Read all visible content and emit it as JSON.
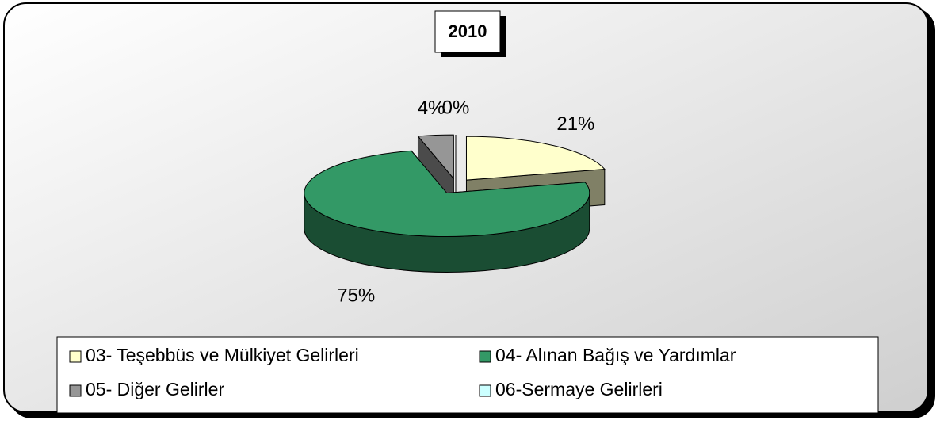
{
  "chart_data": {
    "type": "pie",
    "title": "2010",
    "categories": [
      "03- Teşebbüs ve Mülkiyet Gelirleri",
      "04- Alınan Bağış ve Yardımlar",
      "05- Diğer Gelirler",
      "06-Sermaye Gelirleri"
    ],
    "values": [
      21,
      75,
      4,
      0
    ],
    "value_labels": [
      "21%",
      "75%",
      "4%",
      "0%"
    ],
    "colors": [
      "#ffffcc",
      "#339966",
      "#969696",
      "#ccffff"
    ],
    "legend": "bottom"
  }
}
